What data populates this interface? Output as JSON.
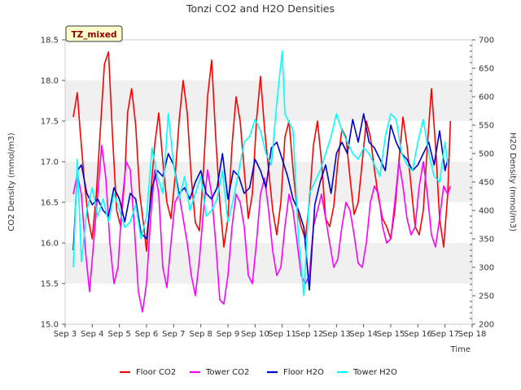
{
  "chart_data": {
    "type": "line",
    "title": "Tonzi CO2 and H2O Densities",
    "xlabel": "Time",
    "ylabel": "CO2 Density (mmol/m3)",
    "ylabel_right": "H2O Density (mmol/m3)",
    "badge": "TZ_mixed",
    "xlim": [
      3,
      18
    ],
    "ylim": [
      15.0,
      18.5
    ],
    "ylim_right": [
      200,
      700
    ],
    "xticks": [
      3,
      4,
      5,
      6,
      7,
      8,
      9,
      10,
      11,
      12,
      13,
      14,
      15,
      16,
      17,
      18
    ],
    "xtick_labels": [
      "Sep 3",
      "Sep 4",
      "Sep 5",
      "Sep 6",
      "Sep 7",
      "Sep 8",
      "Sep 9",
      "Sep 10",
      "Sep 11",
      "Sep 12",
      "Sep 13",
      "Sep 14",
      "Sep 15",
      "Sep 16",
      "Sep 17",
      "Sep 18"
    ],
    "yticks_left": [
      15.0,
      15.5,
      16.0,
      16.5,
      17.0,
      17.5,
      18.0,
      18.5
    ],
    "ytick_labels_left": [
      "15.0",
      "15.5",
      "16.0",
      "16.5",
      "17.0",
      "17.5",
      "18.0",
      "18.5"
    ],
    "yticks_right": [
      200,
      250,
      300,
      350,
      400,
      450,
      500,
      550,
      600,
      650,
      700
    ],
    "ytick_labels_right": [
      "200",
      "250",
      "300",
      "350",
      "400",
      "450",
      "500",
      "550",
      "600",
      "650",
      "700"
    ],
    "bands": [
      [
        15.5,
        16.0
      ],
      [
        16.5,
        17.0
      ],
      [
        17.5,
        18.0
      ]
    ],
    "legend_position": "bottom",
    "series": [
      {
        "name": "Floor CO2",
        "axis": "left",
        "color": "#ff0000",
        "x": [
          3.3,
          3.45,
          3.55,
          3.7,
          3.85,
          4.0,
          4.15,
          4.3,
          4.45,
          4.6,
          4.75,
          4.9,
          5.05,
          5.2,
          5.3,
          5.45,
          5.6,
          5.75,
          5.9,
          6.0,
          6.15,
          6.3,
          6.45,
          6.6,
          6.75,
          6.9,
          7.05,
          7.2,
          7.35,
          7.5,
          7.65,
          7.8,
          7.95,
          8.1,
          8.25,
          8.4,
          8.55,
          8.7,
          8.85,
          9.0,
          9.15,
          9.3,
          9.45,
          9.6,
          9.75,
          9.9,
          10.05,
          10.2,
          10.35,
          10.5,
          10.65,
          10.8,
          10.95,
          11.1,
          11.25,
          11.4,
          11.55,
          11.7,
          11.85,
          12.0,
          12.15,
          12.3,
          12.45,
          12.6,
          12.75,
          12.9,
          13.05,
          13.2,
          13.35,
          13.5,
          13.65,
          13.8,
          13.95,
          14.1,
          14.25,
          14.4,
          14.55,
          14.7,
          14.85,
          15.0,
          15.15,
          15.3,
          15.45,
          15.6,
          15.75,
          15.9,
          16.05,
          16.2,
          16.35,
          16.5,
          16.65,
          16.8,
          16.95,
          17.1,
          17.2
        ],
        "y": [
          17.55,
          17.85,
          17.4,
          16.8,
          16.3,
          16.05,
          16.6,
          17.4,
          18.2,
          18.35,
          17.3,
          16.4,
          16.2,
          16.8,
          17.6,
          17.9,
          17.45,
          16.6,
          16.2,
          15.9,
          16.6,
          17.2,
          17.6,
          17.0,
          16.5,
          16.3,
          16.8,
          17.5,
          18.0,
          17.6,
          16.8,
          16.25,
          16.15,
          16.9,
          17.8,
          18.25,
          17.3,
          16.5,
          15.95,
          16.3,
          17.2,
          17.8,
          17.5,
          16.9,
          16.3,
          16.6,
          17.5,
          18.05,
          17.4,
          16.9,
          16.4,
          16.1,
          16.5,
          17.3,
          17.5,
          16.9,
          16.4,
          16.2,
          16.05,
          16.5,
          17.2,
          17.5,
          17.0,
          16.3,
          16.2,
          16.45,
          17.0,
          17.4,
          17.3,
          16.8,
          16.35,
          16.5,
          17.0,
          17.5,
          17.3,
          16.9,
          16.55,
          16.3,
          16.2,
          16.05,
          16.4,
          17.0,
          17.55,
          17.2,
          16.7,
          16.2,
          16.1,
          16.4,
          17.2,
          17.9,
          17.2,
          16.3,
          15.95,
          16.6,
          17.5
        ]
      },
      {
        "name": "Tower CO2",
        "axis": "left",
        "color": "#ff00ff",
        "x": [
          3.3,
          3.45,
          3.6,
          3.75,
          3.9,
          4.05,
          4.2,
          4.35,
          4.5,
          4.65,
          4.8,
          4.95,
          5.1,
          5.25,
          5.4,
          5.55,
          5.7,
          5.85,
          6.0,
          6.15,
          6.3,
          6.45,
          6.6,
          6.75,
          6.9,
          7.05,
          7.2,
          7.35,
          7.5,
          7.65,
          7.8,
          7.95,
          8.1,
          8.25,
          8.4,
          8.55,
          8.7,
          8.85,
          9.0,
          9.15,
          9.3,
          9.45,
          9.6,
          9.75,
          9.9,
          10.05,
          10.2,
          10.35,
          10.5,
          10.65,
          10.8,
          10.95,
          11.1,
          11.25,
          11.4,
          11.55,
          11.7,
          11.85,
          12.0,
          12.15,
          12.3,
          12.45,
          12.6,
          12.75,
          12.9,
          13.05,
          13.2,
          13.35,
          13.5,
          13.65,
          13.8,
          13.95,
          14.1,
          14.25,
          14.4,
          14.55,
          14.7,
          14.85,
          15.0,
          15.15,
          15.3,
          15.45,
          15.6,
          15.75,
          15.9,
          16.05,
          16.2,
          16.35,
          16.5,
          16.65,
          16.8,
          16.95,
          17.1,
          17.2
        ],
        "y": [
          16.6,
          16.85,
          16.6,
          15.9,
          15.4,
          16.0,
          16.6,
          17.2,
          16.8,
          16.0,
          15.5,
          15.7,
          16.5,
          17.0,
          16.9,
          16.2,
          15.4,
          15.15,
          15.5,
          16.3,
          16.9,
          16.6,
          15.7,
          15.45,
          16.0,
          16.5,
          16.6,
          16.3,
          16.0,
          15.6,
          15.35,
          15.8,
          16.4,
          16.9,
          16.6,
          16.0,
          15.3,
          15.25,
          15.6,
          16.2,
          16.6,
          16.5,
          16.2,
          15.6,
          15.5,
          16.0,
          16.6,
          16.8,
          16.4,
          15.9,
          15.6,
          15.7,
          16.2,
          16.6,
          16.4,
          16.0,
          15.6,
          15.5,
          15.6,
          16.2,
          16.4,
          16.6,
          16.3,
          16.0,
          15.7,
          15.8,
          16.2,
          16.5,
          16.4,
          16.1,
          15.75,
          15.7,
          16.0,
          16.5,
          16.7,
          16.6,
          16.2,
          16.0,
          16.05,
          16.5,
          17.0,
          16.7,
          16.3,
          16.1,
          16.2,
          16.7,
          17.0,
          16.6,
          16.1,
          15.95,
          16.3,
          16.7,
          16.6,
          16.7
        ]
      },
      {
        "name": "Floor H2O",
        "axis": "right",
        "color": "#0000cc",
        "x": [
          3.3,
          3.45,
          3.6,
          3.8,
          4.0,
          4.2,
          4.4,
          4.6,
          4.8,
          5.0,
          5.2,
          5.4,
          5.6,
          5.8,
          6.0,
          6.2,
          6.4,
          6.6,
          6.8,
          7.0,
          7.2,
          7.4,
          7.6,
          7.8,
          8.0,
          8.2,
          8.4,
          8.6,
          8.8,
          9.0,
          9.2,
          9.4,
          9.6,
          9.8,
          10.0,
          10.2,
          10.4,
          10.6,
          10.8,
          11.0,
          11.2,
          11.4,
          11.6,
          11.8,
          12.0,
          12.2,
          12.4,
          12.6,
          12.8,
          13.0,
          13.2,
          13.4,
          13.6,
          13.8,
          14.0,
          14.2,
          14.4,
          14.6,
          14.8,
          15.0,
          15.2,
          15.4,
          15.6,
          15.8,
          16.0,
          16.2,
          16.4,
          16.6,
          16.8,
          17.0,
          17.1
        ],
        "y": [
          330,
          470,
          480,
          430,
          410,
          420,
          400,
          390,
          440,
          420,
          380,
          430,
          420,
          360,
          350,
          440,
          470,
          460,
          500,
          480,
          430,
          440,
          420,
          450,
          470,
          430,
          420,
          440,
          500,
          420,
          470,
          460,
          430,
          440,
          490,
          470,
          440,
          510,
          520,
          490,
          460,
          420,
          400,
          370,
          260,
          410,
          450,
          480,
          430,
          500,
          520,
          500,
          560,
          520,
          570,
          520,
          510,
          490,
          470,
          550,
          520,
          500,
          490,
          470,
          480,
          500,
          520,
          480,
          540,
          470,
          490
        ]
      },
      {
        "name": "Tower H2O",
        "axis": "right",
        "color": "#00ffff",
        "x": [
          3.3,
          3.45,
          3.6,
          3.8,
          4.0,
          4.2,
          4.4,
          4.6,
          4.8,
          5.0,
          5.2,
          5.4,
          5.6,
          5.8,
          6.0,
          6.2,
          6.4,
          6.6,
          6.8,
          7.0,
          7.2,
          7.4,
          7.6,
          7.8,
          8.0,
          8.2,
          8.4,
          8.6,
          8.8,
          9.0,
          9.2,
          9.4,
          9.6,
          9.8,
          10.0,
          10.2,
          10.4,
          10.6,
          10.8,
          11.0,
          11.1,
          11.2,
          11.4,
          11.6,
          11.8,
          12.0,
          12.2,
          12.4,
          12.6,
          12.8,
          13.0,
          13.2,
          13.4,
          13.6,
          13.8,
          14.0,
          14.2,
          14.4,
          14.6,
          14.8,
          15.0,
          15.2,
          15.4,
          15.6,
          15.8,
          16.0,
          16.2,
          16.4,
          16.6,
          16.8,
          17.0,
          17.1
        ],
        "y": [
          300,
          490,
          310,
          400,
          440,
          390,
          420,
          380,
          430,
          400,
          370,
          380,
          410,
          350,
          390,
          510,
          460,
          430,
          570,
          480,
          420,
          460,
          400,
          430,
          460,
          390,
          400,
          420,
          470,
          380,
          420,
          470,
          520,
          530,
          560,
          540,
          500,
          480,
          590,
          680,
          570,
          560,
          540,
          350,
          250,
          430,
          450,
          470,
          500,
          530,
          570,
          540,
          520,
          500,
          490,
          510,
          500,
          480,
          460,
          530,
          570,
          560,
          500,
          480,
          470,
          520,
          560,
          500,
          460,
          450,
          520,
          480
        ]
      }
    ]
  }
}
